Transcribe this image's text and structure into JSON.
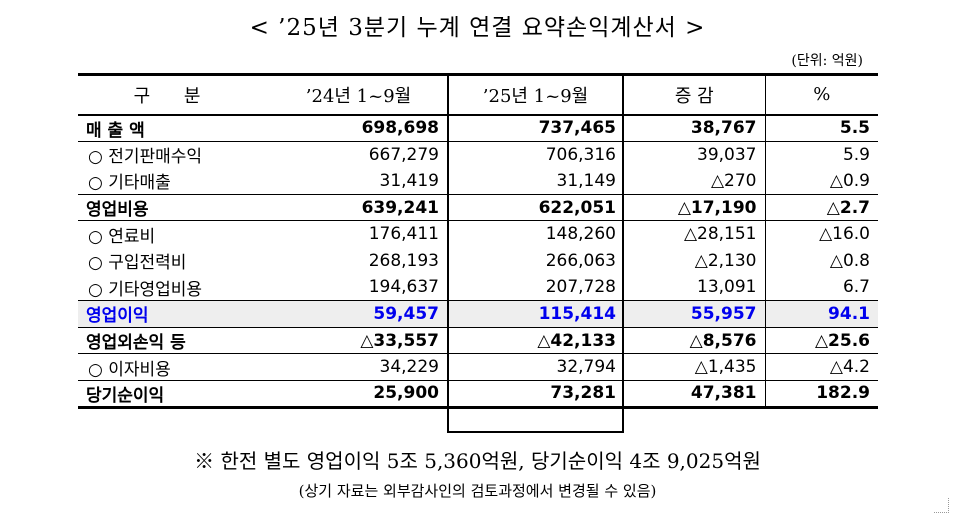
{
  "title": "< ’25년 3분기 누계 연결 요약손익계산서 >",
  "unit": "(단위: 억원)",
  "headers": {
    "label": "구 분",
    "prev": "’24년 1~9월",
    "curr": "’25년 1~9월",
    "change": "증 감",
    "pct": "%"
  },
  "rows": [
    {
      "label": "매 출 액",
      "prev": "698,698",
      "curr": "737,465",
      "change": "38,767",
      "pct": "5.5"
    },
    {
      "label": "○ 전기판매수익",
      "prev": "667,279",
      "curr": "706,316",
      "change": "39,037",
      "pct": "5.9"
    },
    {
      "label": "○ 기타매출",
      "prev": "31,419",
      "curr": "31,149",
      "change": "△270",
      "pct": "△0.9"
    },
    {
      "label": "영업비용",
      "prev": "639,241",
      "curr": "622,051",
      "change": "△17,190",
      "pct": "△2.7"
    },
    {
      "label": "○ 연료비",
      "prev": "176,411",
      "curr": "148,260",
      "change": "△28,151",
      "pct": "△16.0"
    },
    {
      "label": "○ 구입전력비",
      "prev": "268,193",
      "curr": "266,063",
      "change": "△2,130",
      "pct": "△0.8"
    },
    {
      "label": "○ 기타영업비용",
      "prev": "194,637",
      "curr": "207,728",
      "change": "13,091",
      "pct": "6.7"
    },
    {
      "label": "영업이익",
      "prev": "59,457",
      "curr": "115,414",
      "change": "55,957",
      "pct": "94.1"
    },
    {
      "label": "영업외손익 등",
      "prev": "△33,557",
      "curr": "△42,133",
      "change": "△8,576",
      "pct": "△25.6"
    },
    {
      "label": "○ 이자비용",
      "prev": "34,229",
      "curr": "32,794",
      "change": "△1,435",
      "pct": "△4.2"
    },
    {
      "label": "당기순이익",
      "prev": "25,900",
      "curr": "73,281",
      "change": "47,381",
      "pct": "182.9"
    }
  ],
  "note": "※ 한전 별도 영업이익 5조 5,360억원, 당기순이익 4조 9,025억원",
  "subnote": "(상기 자료는 외부감사인의 검토과정에서 변경될 수 있음)",
  "colors": {
    "highlight_text": "#0000ee",
    "highlight_bg": "#eeeeee"
  }
}
